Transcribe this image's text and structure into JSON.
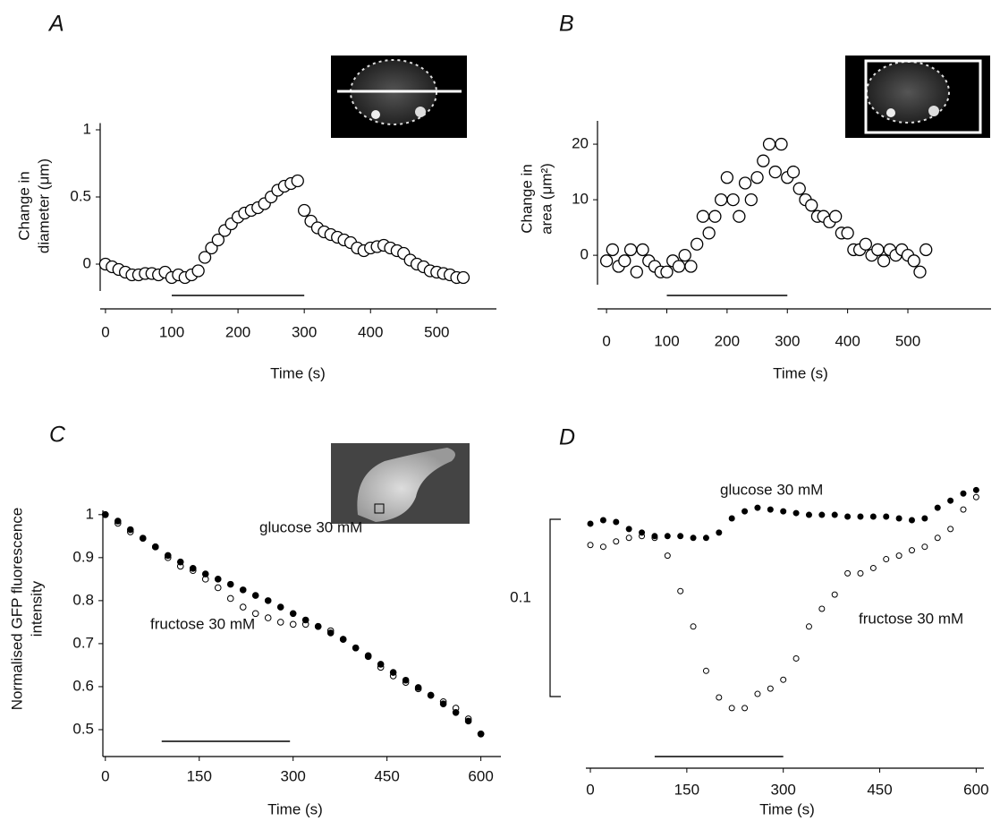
{
  "chart_data": [
    {
      "type": "scatter",
      "title": "A",
      "ylabel": [
        "Change in",
        "diameter (μm)"
      ],
      "xlabel": "Time (s)",
      "x": [
        0,
        10,
        20,
        30,
        40,
        50,
        60,
        70,
        80,
        90,
        100,
        110,
        120,
        130,
        140,
        150,
        160,
        170,
        180,
        190,
        200,
        210,
        220,
        230,
        240,
        250,
        260,
        270,
        280,
        290,
        300,
        310,
        320,
        330,
        340,
        350,
        360,
        370,
        380,
        390,
        400,
        410,
        420,
        430,
        440,
        450,
        460,
        470,
        480,
        490,
        500,
        510,
        520,
        530,
        540
      ],
      "values": [
        0,
        -0.02,
        -0.04,
        -0.06,
        -0.08,
        -0.08,
        -0.07,
        -0.07,
        -0.08,
        -0.06,
        -0.1,
        -0.08,
        -0.1,
        -0.08,
        -0.05,
        0.05,
        0.12,
        0.18,
        0.25,
        0.3,
        0.35,
        0.38,
        0.4,
        0.42,
        0.45,
        0.5,
        0.55,
        0.58,
        0.6,
        0.62,
        0.4,
        0.32,
        0.27,
        0.24,
        0.22,
        0.2,
        0.18,
        0.16,
        0.12,
        0.1,
        0.12,
        0.13,
        0.14,
        0.12,
        0.1,
        0.08,
        0.03,
        0,
        -0.02,
        -0.05,
        -0.06,
        -0.07,
        -0.08,
        -0.1,
        -0.1
      ],
      "color": "#000000",
      "marker": "open",
      "xlim": [
        -8,
        590
      ],
      "xticks": [
        0,
        100,
        200,
        300,
        400,
        500
      ],
      "ylim": [
        -0.2,
        1.05
      ],
      "yticks": [
        0,
        0.5,
        1
      ],
      "stimulus": [
        100,
        300
      ]
    },
    {
      "type": "scatter",
      "title": "B",
      "ylabel": [
        "Change in",
        "area (μm²)"
      ],
      "xlabel": "Time (s)",
      "x": [
        0,
        10,
        20,
        30,
        40,
        50,
        60,
        70,
        80,
        90,
        100,
        110,
        120,
        130,
        140,
        150,
        160,
        170,
        180,
        190,
        200,
        210,
        220,
        230,
        240,
        250,
        260,
        270,
        280,
        290,
        300,
        310,
        320,
        330,
        340,
        350,
        360,
        370,
        380,
        390,
        400,
        410,
        420,
        430,
        440,
        450,
        460,
        470,
        480,
        490,
        500,
        510,
        520,
        530
      ],
      "values": [
        -1,
        1,
        -2,
        -1,
        1,
        -3,
        1,
        -1,
        -2,
        -3,
        -3,
        -1,
        -2,
        0,
        -2,
        2,
        7,
        4,
        7,
        10,
        14,
        10,
        7,
        13,
        10,
        14,
        17,
        20,
        15,
        20,
        14,
        15,
        12,
        10,
        9,
        7,
        7,
        6,
        7,
        4,
        4,
        1,
        1,
        2,
        0,
        1,
        -1,
        1,
        0,
        1,
        0,
        -1,
        -3,
        1
      ],
      "color": "#000000",
      "marker": "open",
      "xlim": [
        -15,
        638
      ],
      "xticks": [
        0,
        100,
        200,
        300,
        400,
        500
      ],
      "ylim": [
        -5.3,
        24.2
      ],
      "yticks": [
        0,
        10,
        20
      ],
      "stimulus": [
        100,
        300
      ]
    },
    {
      "type": "scatter",
      "title": "C",
      "ylabel": [
        "Normalised GFP fluorescence",
        "intensity"
      ],
      "xlabel": "Time (s)",
      "x": [
        0,
        20,
        40,
        60,
        80,
        100,
        120,
        140,
        160,
        180,
        200,
        220,
        240,
        260,
        280,
        300,
        320,
        340,
        360,
        380,
        400,
        420,
        440,
        460,
        480,
        500,
        520,
        540,
        560,
        580,
        600
      ],
      "series": [
        {
          "name": "glucose 30 mM",
          "color": "#000000",
          "marker": "filled",
          "values": [
            1.0,
            0.985,
            0.965,
            0.945,
            0.925,
            0.905,
            0.89,
            0.875,
            0.862,
            0.85,
            0.838,
            0.825,
            0.812,
            0.8,
            0.785,
            0.77,
            0.755,
            0.74,
            0.725,
            0.71,
            0.69,
            0.672,
            0.652,
            0.633,
            0.615,
            0.598,
            0.58,
            0.56,
            0.54,
            0.52,
            0.49
          ]
        },
        {
          "name": "fructose 30 mM",
          "color": "#000000",
          "marker": "open",
          "values": [
            1.0,
            0.98,
            0.96,
            0.945,
            0.925,
            0.9,
            0.88,
            0.87,
            0.85,
            0.83,
            0.805,
            0.785,
            0.77,
            0.76,
            0.75,
            0.745,
            0.745,
            0.74,
            0.73,
            0.71,
            0.69,
            0.67,
            0.645,
            0.625,
            0.61,
            0.595,
            0.58,
            0.565,
            0.55,
            0.525,
            0.49
          ]
        }
      ],
      "xlim": [
        -4,
        632
      ],
      "xticks": [
        0,
        150,
        300,
        450,
        600
      ],
      "ylim": [
        0.4375,
        1.01
      ],
      "yticks": [
        0.5,
        0.6,
        0.7,
        0.8,
        0.9,
        1
      ],
      "stimulus": [
        90,
        295
      ]
    },
    {
      "type": "scatter",
      "title": "D",
      "xlabel": "Time (s)",
      "x": [
        0,
        20,
        40,
        60,
        80,
        100,
        120,
        140,
        160,
        180,
        200,
        220,
        240,
        260,
        280,
        300,
        320,
        340,
        360,
        380,
        400,
        420,
        440,
        460,
        480,
        500,
        520,
        540,
        560,
        580,
        600
      ],
      "series": [
        {
          "name": "glucose 30 mM",
          "color": "#000000",
          "marker": "filled",
          "values": [
            0,
            0.002,
            0.001,
            -0.003,
            -0.005,
            -0.007,
            -0.007,
            -0.007,
            -0.008,
            -0.008,
            -0.005,
            0.003,
            0.007,
            0.009,
            0.008,
            0.007,
            0.006,
            0.005,
            0.005,
            0.005,
            0.004,
            0.004,
            0.004,
            0.004,
            0.003,
            0.002,
            0.003,
            0.009,
            0.013,
            0.017,
            0.019
          ]
        },
        {
          "name": "fructose 30 mM",
          "color": "#000000",
          "marker": "open",
          "values": [
            -0.012,
            -0.013,
            -0.01,
            -0.008,
            -0.007,
            -0.008,
            -0.018,
            -0.038,
            -0.058,
            -0.083,
            -0.098,
            -0.104,
            -0.104,
            -0.096,
            -0.093,
            -0.088,
            -0.076,
            -0.058,
            -0.048,
            -0.04,
            -0.028,
            -0.028,
            -0.025,
            -0.02,
            -0.018,
            -0.015,
            -0.013,
            -0.008,
            -0.003,
            0.008,
            0.015
          ]
        }
      ],
      "xlim": [
        -7,
        612
      ],
      "xticks": [
        0,
        150,
        300,
        450,
        600
      ],
      "ylim": [
        -0.1086,
        0.0227
      ],
      "scale_bar": 0.1,
      "stimulus": [
        100,
        300
      ]
    }
  ]
}
